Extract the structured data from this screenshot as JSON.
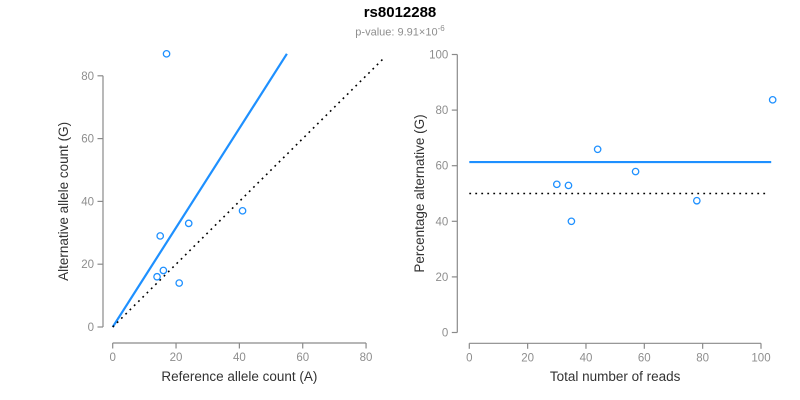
{
  "header": {
    "title": "rs8012288",
    "subtitle_base": "p-value: 9.91×10",
    "subtitle_exponent": "-6"
  },
  "colors": {
    "accent_blue": "#1E90FF",
    "axis_gray": "#8a8a8a",
    "tick_label_gray": "#8e8e8e",
    "line_black": "#000000"
  },
  "chart_data": [
    {
      "type": "scatter",
      "panel": "left",
      "xlabel": "Reference allele count (A)",
      "ylabel": "Alternative allele count (G)",
      "xlim": [
        0,
        80
      ],
      "ylim": [
        0,
        80
      ],
      "xticks": [
        0,
        20,
        40,
        60,
        80
      ],
      "yticks": [
        0,
        20,
        40,
        60,
        80
      ],
      "grid": false,
      "points": [
        [
          17,
          87
        ],
        [
          15,
          29
        ],
        [
          24,
          33
        ],
        [
          16,
          18
        ],
        [
          14,
          16
        ],
        [
          21,
          14
        ],
        [
          41,
          37
        ]
      ],
      "lines": [
        {
          "name": "fit-line",
          "x1": 0,
          "y1": 0,
          "x2": 55,
          "y2": 87,
          "color": "#1E90FF",
          "style": "solid"
        },
        {
          "name": "identity-line",
          "x1": 0,
          "y1": 0,
          "x2": 86,
          "y2": 86,
          "color": "#000000",
          "style": "dotted"
        }
      ]
    },
    {
      "type": "scatter",
      "panel": "right",
      "xlabel": "Total number of reads",
      "ylabel": "Percentage alternative (G)",
      "xlim": [
        0,
        100
      ],
      "ylim": [
        0,
        100
      ],
      "xticks": [
        0,
        20,
        40,
        60,
        80,
        100
      ],
      "yticks": [
        0,
        20,
        40,
        60,
        80,
        100
      ],
      "grid": false,
      "points": [
        [
          104,
          83.7
        ],
        [
          44,
          65.9
        ],
        [
          57,
          57.9
        ],
        [
          34,
          52.9
        ],
        [
          30,
          53.3
        ],
        [
          78,
          47.4
        ],
        [
          35,
          40
        ]
      ],
      "lines": [
        {
          "name": "mean-line",
          "x1": 0,
          "y1": 61.3,
          "x2": 103.5,
          "y2": 61.3,
          "color": "#1E90FF",
          "style": "solid"
        },
        {
          "name": "expected-line",
          "x1": 0,
          "y1": 50,
          "x2": 101.5,
          "y2": 50,
          "color": "#000000",
          "style": "dotted"
        }
      ]
    }
  ]
}
